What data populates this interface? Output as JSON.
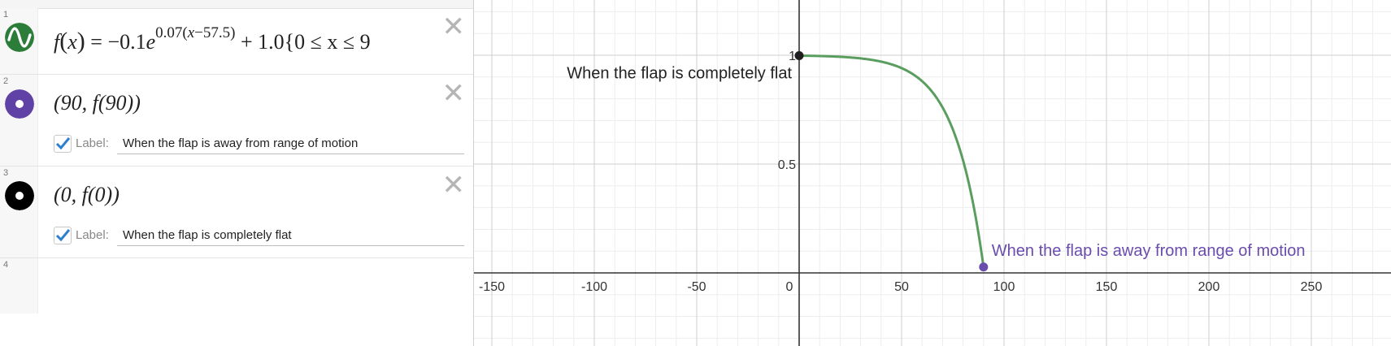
{
  "expressions": [
    {
      "num": "1",
      "icon": "graph-wave-icon",
      "color": "#2d7d3a",
      "formula_tail": "+ 1.0{0 ≤ x ≤ 9"
    },
    {
      "num": "2",
      "icon": "point-icon",
      "color": "#6042a6",
      "point": "(90, f(90))",
      "label_word": "Label:",
      "label_value": "When the flap is away from range of motion",
      "show_label": true
    },
    {
      "num": "3",
      "icon": "point-icon",
      "color": "#000000",
      "point": "(0, f(0))",
      "label_word": "Label:",
      "label_value": "When the flap is completely flat",
      "show_label": true
    },
    {
      "num": "4"
    }
  ],
  "chart_data": {
    "type": "line",
    "function": "f(x) = -0.1e^(0.07(x-57.5)) + 1.0, 0 ≤ x ≤ 90",
    "xlim": [
      -160,
      290
    ],
    "ylim": [
      -0.35,
      1.25
    ],
    "x_ticks": [
      -150,
      -100,
      -50,
      0,
      50,
      100,
      150,
      200,
      250
    ],
    "y_ticks": [
      0.5,
      1
    ],
    "grid": true,
    "series_color": "#5a9e5f",
    "points": [
      {
        "x": 0,
        "y": 0.9982,
        "color": "#1f1f1f",
        "label": "When the flap is completely flat"
      },
      {
        "x": 90,
        "y": 0.027,
        "color": "#6a4cad",
        "label": "When the flap is away from range of motion"
      }
    ]
  }
}
